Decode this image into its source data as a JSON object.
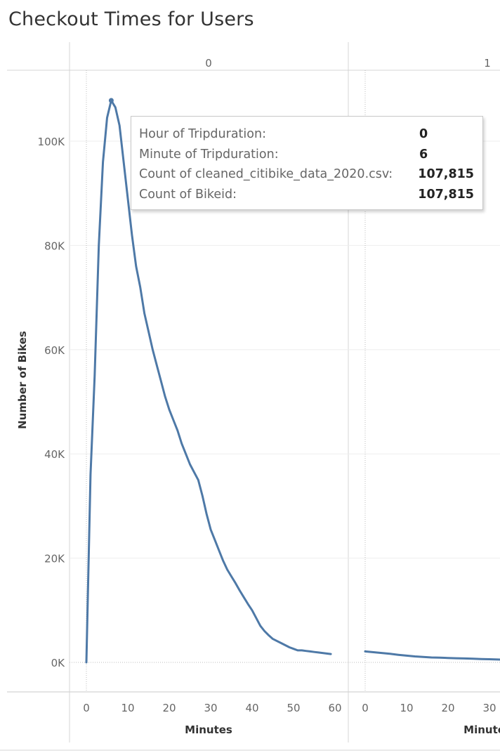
{
  "title": "Checkout Times for Users",
  "chart_data": {
    "type": "line",
    "title": "Checkout Times for Users",
    "ylabel": "Number of Bikes",
    "xlabel": "Minutes",
    "ylim": [
      0,
      110000
    ],
    "y_ticks": [
      {
        "value": 0,
        "label": "0K"
      },
      {
        "value": 20000,
        "label": "20K"
      },
      {
        "value": 40000,
        "label": "40K"
      },
      {
        "value": 60000,
        "label": "60K"
      },
      {
        "value": 80000,
        "label": "80K"
      },
      {
        "value": 100000,
        "label": "100K"
      }
    ],
    "grid": true,
    "color": "#4e79a7",
    "panels": [
      {
        "header": "0",
        "xlabel": "Minutes",
        "xlim": [
          0,
          60
        ],
        "x_ticks": [
          "0",
          "10",
          "20",
          "30",
          "40",
          "50",
          "60"
        ],
        "x": [
          0,
          1,
          2,
          3,
          4,
          5,
          6,
          7,
          8,
          9,
          10,
          11,
          12,
          13,
          14,
          15,
          16,
          17,
          18,
          19,
          20,
          21,
          22,
          23,
          24,
          25,
          26,
          27,
          28,
          29,
          30,
          31,
          32,
          33,
          34,
          35,
          36,
          37,
          38,
          39,
          40,
          41,
          42,
          43,
          44,
          45,
          46,
          47,
          48,
          49,
          50,
          51,
          52,
          53,
          54,
          55,
          56,
          57,
          58,
          59
        ],
        "y": [
          0,
          36000,
          55000,
          80000,
          96000,
          104500,
          107815,
          106500,
          103000,
          96000,
          89000,
          82000,
          76000,
          72000,
          67000,
          63500,
          60000,
          57000,
          54000,
          51000,
          48500,
          46500,
          44500,
          42000,
          40000,
          38000,
          36500,
          35000,
          32000,
          28500,
          25500,
          23500,
          21500,
          19500,
          17800,
          16500,
          15200,
          13800,
          12500,
          11200,
          10000,
          8500,
          7000,
          6000,
          5200,
          4500,
          4100,
          3700,
          3300,
          2900,
          2600,
          2300,
          2300,
          2200,
          2100,
          2000,
          1900,
          1800,
          1700,
          1600
        ]
      },
      {
        "header": "1",
        "xlabel": "Minutes",
        "xlim": [
          0,
          60
        ],
        "x_ticks": [
          "0",
          "10",
          "20",
          "30"
        ],
        "x": [
          0,
          2,
          4,
          6,
          8,
          10,
          12,
          14,
          16,
          18,
          20,
          22,
          24,
          26,
          28,
          30,
          32,
          34
        ],
        "y": [
          2100,
          1950,
          1800,
          1650,
          1450,
          1300,
          1150,
          1050,
          950,
          900,
          850,
          800,
          750,
          700,
          650,
          600,
          550,
          500
        ]
      }
    ],
    "highlight": {
      "panel": 0,
      "x": 6,
      "y": 107815
    }
  },
  "tooltip": {
    "rows": [
      {
        "key": "Hour of Tripduration:",
        "value": "0"
      },
      {
        "key": "Minute of Tripduration:",
        "value": "6"
      },
      {
        "key": "Count of cleaned_citibike_data_2020.csv:",
        "value": "107,815"
      },
      {
        "key": "Count of Bikeid:",
        "value": "107,815"
      }
    ]
  }
}
